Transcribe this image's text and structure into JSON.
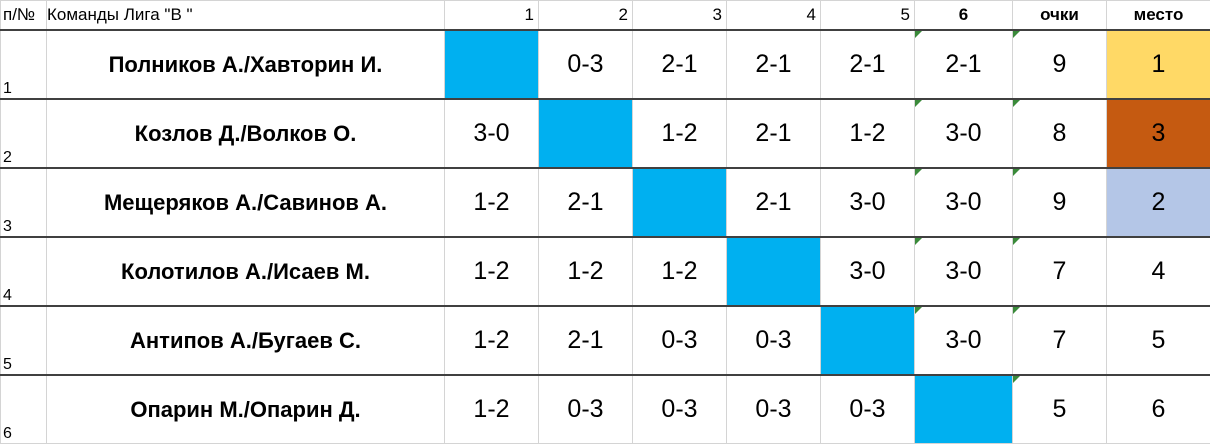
{
  "header": {
    "num_label": "п/№",
    "teams_label": "Команды Лига \"В \"",
    "cols": [
      "1",
      "2",
      "3",
      "4",
      "5",
      "6"
    ],
    "points_label": "очки",
    "place_label": "место"
  },
  "rows": [
    {
      "n": "1",
      "team": "Полников А./Хавторин И.",
      "scores": [
        "",
        "0-3",
        "2-1",
        "2-1",
        "2-1",
        "2-1"
      ],
      "points": "9",
      "place": "1"
    },
    {
      "n": "2",
      "team": "Козлов Д./Волков О.",
      "scores": [
        "3-0",
        "",
        "1-2",
        "2-1",
        "1-2",
        "3-0"
      ],
      "points": "8",
      "place": "3"
    },
    {
      "n": "3",
      "team": "Мещеряков А./Савинов А.",
      "scores": [
        "1-2",
        "2-1",
        "",
        "2-1",
        "3-0",
        "3-0"
      ],
      "points": "9",
      "place": "2"
    },
    {
      "n": "4",
      "team": "Колотилов А./Исаев М.",
      "scores": [
        "1-2",
        "1-2",
        "1-2",
        "",
        "3-0",
        "3-0"
      ],
      "points": "7",
      "place": "4"
    },
    {
      "n": "5",
      "team": "Антипов А./Бугаев С.",
      "scores": [
        "1-2",
        "2-1",
        "0-3",
        "0-3",
        "",
        "3-0"
      ],
      "points": "7",
      "place": "5"
    },
    {
      "n": "6",
      "team": "Опарин М./Опарин Д.",
      "scores": [
        "1-2",
        "0-3",
        "0-3",
        "0-3",
        "0-3",
        ""
      ],
      "points": "5",
      "place": "6"
    }
  ],
  "colors": {
    "diagonal": "#00b0f0",
    "place_1": "#ffd966",
    "place_2": "#b4c6e7",
    "place_3": "#c55a11"
  }
}
